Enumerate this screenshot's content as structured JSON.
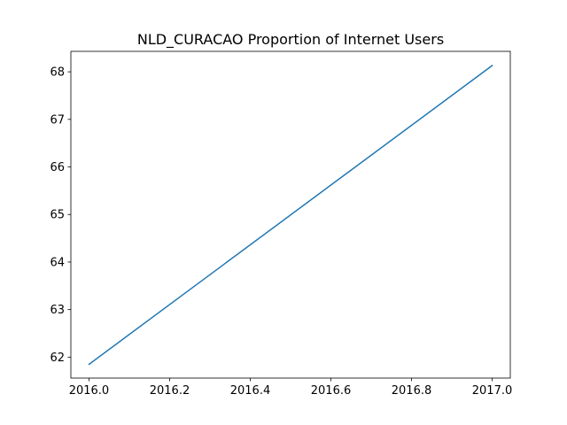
{
  "chart_data": {
    "type": "line",
    "title": "NLD_CURACAO Proportion of Internet Users",
    "xlabel": "",
    "ylabel": "",
    "xlim": [
      2015.955,
      2017.045
    ],
    "ylim": [
      61.56,
      68.43
    ],
    "x_ticks": [
      2016.0,
      2016.2,
      2016.4,
      2016.6,
      2016.8,
      2017.0
    ],
    "x_tick_labels": [
      "2016.0",
      "2016.2",
      "2016.4",
      "2016.6",
      "2016.8",
      "2017.0"
    ],
    "y_ticks": [
      62,
      63,
      64,
      65,
      66,
      67,
      68
    ],
    "y_tick_labels": [
      "62",
      "63",
      "64",
      "65",
      "66",
      "67",
      "68"
    ],
    "grid": false,
    "series": [
      {
        "color": "#1f77b4",
        "x": [
          2016.0,
          2017.0
        ],
        "y": [
          61.85,
          68.13
        ]
      }
    ]
  }
}
